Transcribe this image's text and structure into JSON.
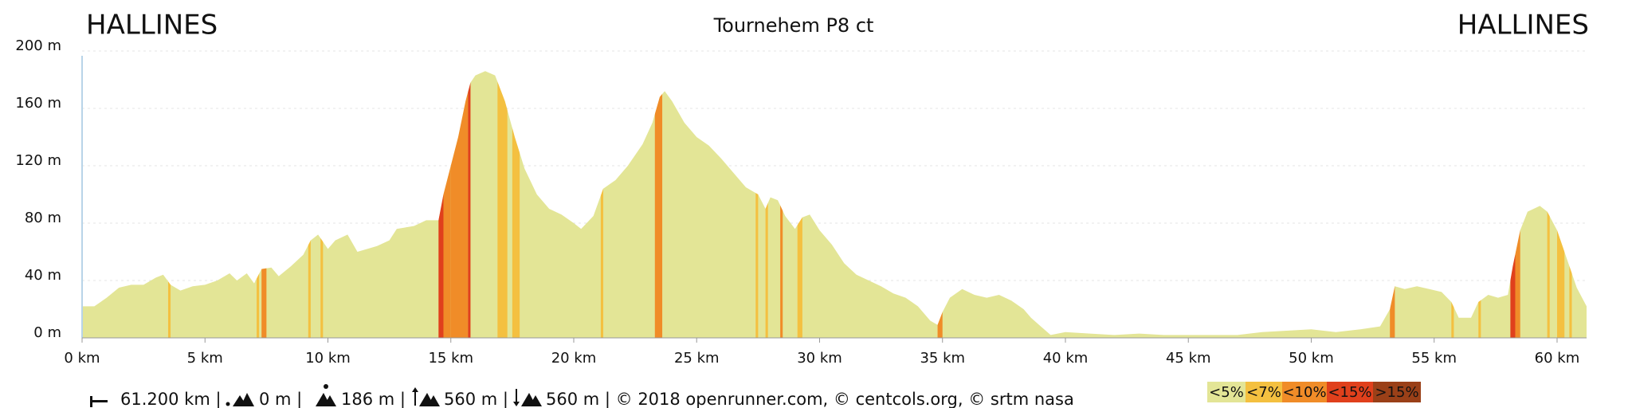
{
  "chart_data": {
    "type": "area",
    "title": "Tournehem P8 ct",
    "start_label": "HALLINES",
    "end_label": "HALLINES",
    "color": "#e3e596",
    "x": [
      0,
      0.5,
      1,
      1.5,
      2,
      2.5,
      3,
      3.3,
      3.6,
      4,
      4.5,
      5,
      5.5,
      6,
      6.3,
      6.7,
      7,
      7.3,
      7.7,
      8,
      8.5,
      9,
      9.3,
      9.6,
      10,
      10.3,
      10.8,
      11.2,
      12,
      12.5,
      12.8,
      13.5,
      14,
      14.5,
      14.7,
      15,
      15.3,
      15.6,
      15.8,
      16,
      16.4,
      16.8,
      17.2,
      17.6,
      18,
      18.5,
      19,
      19.5,
      20,
      20.3,
      20.8,
      21.2,
      21.7,
      22.2,
      22.8,
      23.2,
      23.5,
      23.7,
      24,
      24.5,
      25,
      25.5,
      26,
      26.5,
      27,
      27.5,
      27.8,
      28,
      28.3,
      28.6,
      29,
      29.3,
      29.6,
      30,
      30.5,
      31,
      31.5,
      32,
      32.5,
      33,
      33.5,
      34,
      34.5,
      34.8,
      35,
      35.3,
      35.8,
      36.3,
      36.8,
      37.3,
      37.8,
      38.3,
      38.6,
      39,
      39.4,
      40,
      41,
      42,
      43,
      44,
      45,
      46,
      47,
      48,
      49,
      50,
      51,
      52,
      52.8,
      53.2,
      53.4,
      53.8,
      54.3,
      54.8,
      55.3,
      55.7,
      56,
      56.5,
      56.8,
      57.2,
      57.6,
      58,
      58.2,
      58.5,
      58.8,
      59.3,
      59.6,
      60,
      60.4,
      60.8,
      61.2
    ],
    "values": [
      22,
      22,
      28,
      35,
      37,
      37,
      42,
      44,
      37,
      33,
      36,
      37,
      40,
      45,
      40,
      45,
      38,
      48,
      49,
      43,
      50,
      58,
      68,
      72,
      62,
      68,
      72,
      60,
      64,
      68,
      76,
      78,
      82,
      82,
      100,
      120,
      140,
      165,
      178,
      183,
      186,
      183,
      165,
      140,
      118,
      100,
      90,
      86,
      80,
      76,
      85,
      104,
      110,
      120,
      135,
      150,
      168,
      172,
      165,
      150,
      140,
      134,
      125,
      115,
      105,
      100,
      90,
      98,
      96,
      85,
      76,
      84,
      86,
      75,
      65,
      52,
      44,
      40,
      36,
      31,
      28,
      22,
      12,
      9,
      18,
      28,
      34,
      30,
      28,
      30,
      26,
      20,
      14,
      8,
      2,
      4,
      3,
      2,
      3,
      2,
      2,
      2,
      2,
      4,
      5,
      6,
      4,
      6,
      8,
      20,
      36,
      34,
      36,
      34,
      32,
      25,
      14,
      14,
      25,
      30,
      28,
      30,
      50,
      75,
      88,
      92,
      88,
      75,
      55,
      35,
      22
    ],
    "xlim": [
      0,
      61.2
    ],
    "ylim": [
      0,
      200
    ],
    "xticks": [
      {
        "value": 0,
        "label": "0 km"
      },
      {
        "value": 5,
        "label": "5 km"
      },
      {
        "value": 10,
        "label": "10 km"
      },
      {
        "value": 15,
        "label": "15 km"
      },
      {
        "value": 20,
        "label": "20 km"
      },
      {
        "value": 25,
        "label": "25 km"
      },
      {
        "value": 30,
        "label": "30 km"
      },
      {
        "value": 35,
        "label": "35 km"
      },
      {
        "value": 40,
        "label": "40 km"
      },
      {
        "value": 45,
        "label": "45 km"
      },
      {
        "value": 50,
        "label": "50 km"
      },
      {
        "value": 55,
        "label": "55 km"
      },
      {
        "value": 60,
        "label": "60 km"
      }
    ],
    "yticks": [
      {
        "value": 0,
        "label": "0 m"
      },
      {
        "value": 40,
        "label": "40 m"
      },
      {
        "value": 80,
        "label": "80 m"
      },
      {
        "value": 120,
        "label": "120 m"
      },
      {
        "value": 160,
        "label": "160 m"
      },
      {
        "value": 200,
        "label": "200 m"
      }
    ],
    "grid": true,
    "slope_classes": [
      {
        "name": "<5%",
        "color": "#e3e596"
      },
      {
        "name": "<7%",
        "color": "#f4c040"
      },
      {
        "name": "<10%",
        "color": "#f08c28"
      },
      {
        "name": "<15%",
        "color": "#e0401c"
      },
      {
        "name": ">15%",
        "color": "#9a4018"
      }
    ],
    "sections": [
      {
        "x0": 3.5,
        "x1": 3.6,
        "class": 1
      },
      {
        "x0": 7.1,
        "x1": 7.2,
        "class": 1
      },
      {
        "x0": 7.3,
        "x1": 7.5,
        "class": 2
      },
      {
        "x0": 9.2,
        "x1": 9.3,
        "class": 1
      },
      {
        "x0": 9.7,
        "x1": 9.8,
        "class": 1
      },
      {
        "x0": 14.5,
        "x1": 14.7,
        "class": 3
      },
      {
        "x0": 14.7,
        "x1": 15.0,
        "class": 2
      },
      {
        "x0": 15.0,
        "x1": 15.7,
        "class": 2
      },
      {
        "x0": 15.7,
        "x1": 15.8,
        "class": 3
      },
      {
        "x0": 16.9,
        "x1": 17.3,
        "class": 1
      },
      {
        "x0": 17.5,
        "x1": 17.8,
        "class": 1
      },
      {
        "x0": 21.1,
        "x1": 21.2,
        "class": 1
      },
      {
        "x0": 23.3,
        "x1": 23.6,
        "class": 2
      },
      {
        "x0": 27.4,
        "x1": 27.5,
        "class": 1
      },
      {
        "x0": 27.8,
        "x1": 27.9,
        "class": 1
      },
      {
        "x0": 28.4,
        "x1": 28.5,
        "class": 2
      },
      {
        "x0": 29.1,
        "x1": 29.3,
        "class": 1
      },
      {
        "x0": 34.8,
        "x1": 35.0,
        "class": 2
      },
      {
        "x0": 53.2,
        "x1": 53.4,
        "class": 2
      },
      {
        "x0": 55.7,
        "x1": 55.8,
        "class": 1
      },
      {
        "x0": 56.8,
        "x1": 56.9,
        "class": 1
      },
      {
        "x0": 58.1,
        "x1": 58.3,
        "class": 3
      },
      {
        "x0": 58.3,
        "x1": 58.5,
        "class": 2
      },
      {
        "x0": 59.6,
        "x1": 59.7,
        "class": 1
      },
      {
        "x0": 60.0,
        "x1": 60.3,
        "class": 1
      },
      {
        "x0": 60.5,
        "x1": 60.6,
        "class": 1
      }
    ],
    "footer": [
      "61.200 km |",
      "0 m |",
      "186 m |",
      "560 m |",
      "560 m | © 2018 openrunner.com, © centcols.org, © srtm nasa"
    ]
  }
}
